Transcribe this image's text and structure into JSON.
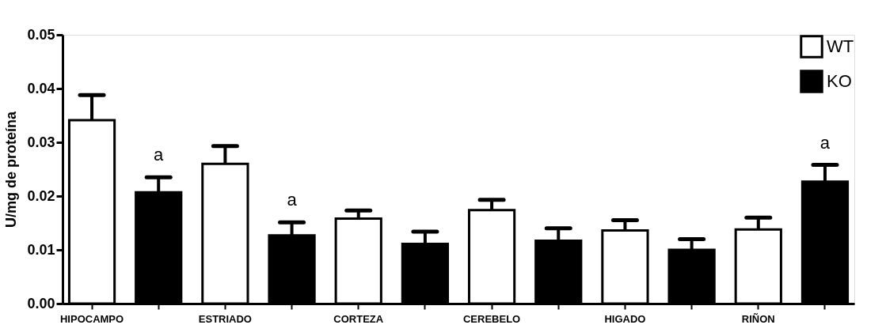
{
  "chart_data": {
    "type": "bar",
    "ylabel": "U/mg de proteína",
    "categories": [
      "HIPOCAMPO",
      null,
      "ESTRIADO",
      null,
      "CORTEZA",
      null,
      "CEREBELO",
      null,
      "HIGADO",
      null,
      "RIÑON",
      null
    ],
    "series": [
      {
        "name": "WT",
        "color": "#ffffff",
        "values": [
          0.0341,
          null,
          0.026,
          null,
          0.0158,
          null,
          0.0174,
          null,
          0.0136,
          null,
          0.0138,
          null
        ],
        "errors": [
          [
            0.0341,
            0.0388
          ],
          null,
          [
            0.026,
            0.0293
          ],
          null,
          [
            0.0158,
            0.0173
          ],
          null,
          [
            0.0174,
            0.0193
          ],
          null,
          [
            0.0136,
            0.0155
          ],
          null,
          [
            0.0138,
            0.016
          ],
          null
        ]
      },
      {
        "name": "KO",
        "color": "#000000",
        "values": [
          null,
          0.0207,
          null,
          0.0127,
          null,
          0.0111,
          null,
          0.0117,
          null,
          0.01,
          null,
          0.0227
        ],
        "errors": [
          null,
          [
            0.0207,
            0.0235
          ],
          null,
          [
            0.0127,
            0.0151
          ],
          null,
          [
            0.0111,
            0.0134
          ],
          null,
          [
            0.0117,
            0.014
          ],
          null,
          [
            0.01,
            0.012
          ],
          null,
          [
            0.0227,
            0.0258
          ]
        ],
        "value_labels": [
          null,
          "a",
          null,
          "a",
          null,
          null,
          null,
          null,
          null,
          null,
          null,
          "a"
        ]
      }
    ],
    "ylim": [
      0,
      0.05
    ],
    "yticks": [
      {
        "value": 0,
        "label": "0.00"
      },
      {
        "value": 0.01,
        "label": "0.01"
      },
      {
        "value": 0.02,
        "label": "0.02"
      },
      {
        "value": 0.03,
        "label": "0.03"
      },
      {
        "value": 0.04,
        "label": "0.04"
      },
      {
        "value": 0.05,
        "label": "0.05"
      }
    ],
    "grid": false,
    "legend": "top right"
  }
}
